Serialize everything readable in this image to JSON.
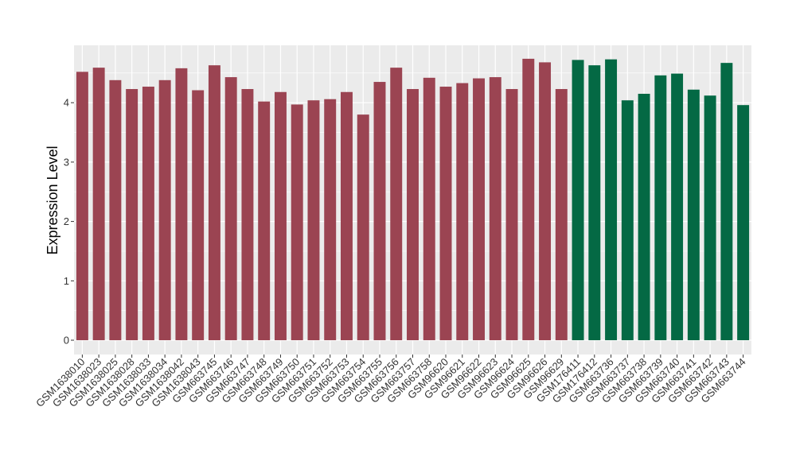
{
  "chart_data": {
    "type": "bar",
    "ylabel": "Expression Level",
    "xlabel": "",
    "ylim": [
      0,
      4.92
    ],
    "yticks": [
      0,
      1,
      2,
      3,
      4
    ],
    "grid": true,
    "legend": "none",
    "categories": [
      "GSM1638010",
      "GSM1638023",
      "GSM1638025",
      "GSM1638028",
      "GSM1638033",
      "GSM1638034",
      "GSM1638042",
      "GSM1638043",
      "GSM663745",
      "GSM663746",
      "GSM663747",
      "GSM663748",
      "GSM663749",
      "GSM663750",
      "GSM663751",
      "GSM663752",
      "GSM663753",
      "GSM663754",
      "GSM663755",
      "GSM663756",
      "GSM663757",
      "GSM663758",
      "GSM96620",
      "GSM96621",
      "GSM96622",
      "GSM96623",
      "GSM96624",
      "GSM96625",
      "GSM96626",
      "GSM96629",
      "GSM176411",
      "GSM176412",
      "GSM663736",
      "GSM663737",
      "GSM663738",
      "GSM663739",
      "GSM663740",
      "GSM663741",
      "GSM663742",
      "GSM663743",
      "GSM663744"
    ],
    "values": [
      4.52,
      4.59,
      4.38,
      4.23,
      4.27,
      4.38,
      4.58,
      4.21,
      4.63,
      4.43,
      4.23,
      4.02,
      4.18,
      3.97,
      4.04,
      4.06,
      4.18,
      3.8,
      4.35,
      4.59,
      4.23,
      4.42,
      4.27,
      4.33,
      4.41,
      4.43,
      4.23,
      4.74,
      4.68,
      4.23,
      4.72,
      4.63,
      4.73,
      4.04,
      4.15,
      4.46,
      4.49,
      4.22,
      4.12,
      4.67,
      3.96
    ],
    "groups": [
      0,
      0,
      0,
      0,
      0,
      0,
      0,
      0,
      0,
      0,
      0,
      0,
      0,
      0,
      0,
      0,
      0,
      0,
      0,
      0,
      0,
      0,
      0,
      0,
      0,
      0,
      0,
      0,
      0,
      0,
      1,
      1,
      1,
      1,
      1,
      1,
      1,
      1,
      1,
      1,
      1
    ],
    "colors": [
      "#9b4452",
      "#046944"
    ],
    "panel_background": "#ebebeb",
    "grid_color": "#ffffff"
  }
}
